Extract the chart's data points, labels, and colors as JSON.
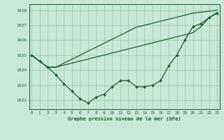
{
  "title": "Graphe pression niveau de la mer (hPa)",
  "xlabel_ticks": [
    0,
    1,
    2,
    3,
    4,
    5,
    6,
    7,
    8,
    9,
    10,
    11,
    12,
    13,
    14,
    15,
    16,
    17,
    18,
    19,
    20,
    21,
    22,
    23
  ],
  "ylim": [
    1021.4,
    1028.4
  ],
  "xlim": [
    -0.3,
    23.3
  ],
  "yticks": [
    1022,
    1023,
    1024,
    1025,
    1026,
    1027,
    1028
  ],
  "bg_color": "#c8e8d8",
  "grid_color": "#98c8ab",
  "line_color": "#1a5c2a",
  "line1_y": [
    1025.0,
    1024.6,
    1024.2,
    1023.7,
    1023.1,
    1022.6,
    1022.1,
    1021.8,
    1022.2,
    1022.4,
    1022.9,
    1023.3,
    1023.3,
    1022.9,
    1022.9,
    1023.0,
    1023.3,
    1024.3,
    1025.0,
    1026.0,
    1026.9,
    1027.1,
    1027.5,
    1027.8
  ],
  "line2_y": [
    1025.0,
    1024.6,
    1024.2,
    1024.2,
    1024.34,
    1024.47,
    1024.61,
    1024.74,
    1024.88,
    1025.01,
    1025.15,
    1025.28,
    1025.42,
    1025.55,
    1025.69,
    1025.82,
    1025.96,
    1026.09,
    1026.23,
    1026.36,
    1026.5,
    1026.9,
    1027.5,
    1027.85
  ],
  "line3_y": [
    1025.0,
    1024.6,
    1024.2,
    1024.2,
    1024.47,
    1024.73,
    1025.0,
    1025.27,
    1025.53,
    1025.8,
    1026.07,
    1026.33,
    1026.6,
    1026.87,
    1027.0,
    1027.13,
    1027.27,
    1027.4,
    1027.53,
    1027.67,
    1027.8,
    1027.87,
    1027.93,
    1028.0
  ]
}
